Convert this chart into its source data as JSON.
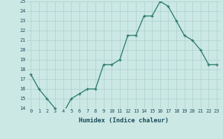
{
  "x": [
    0,
    1,
    2,
    3,
    4,
    5,
    6,
    7,
    8,
    9,
    10,
    11,
    12,
    13,
    14,
    15,
    16,
    17,
    18,
    19,
    20,
    21,
    22,
    23
  ],
  "y": [
    17.5,
    16.0,
    15.0,
    14.0,
    13.5,
    15.0,
    15.5,
    16.0,
    16.0,
    18.5,
    18.5,
    19.0,
    21.5,
    21.5,
    23.5,
    23.5,
    25.0,
    24.5,
    23.0,
    21.5,
    21.0,
    20.0,
    18.5,
    18.5
  ],
  "xlabel": "Humidex (Indice chaleur)",
  "ylim": [
    14,
    25
  ],
  "xlim": [
    -0.5,
    23.5
  ],
  "yticks": [
    14,
    15,
    16,
    17,
    18,
    19,
    20,
    21,
    22,
    23,
    24,
    25
  ],
  "xticks": [
    0,
    1,
    2,
    3,
    4,
    5,
    6,
    7,
    8,
    9,
    10,
    11,
    12,
    13,
    14,
    15,
    16,
    17,
    18,
    19,
    20,
    21,
    22,
    23
  ],
  "line_color": "#2e7d6e",
  "marker_color": "#2e7d6e",
  "bg_color": "#cce8e4",
  "grid_color": "#aacfcb",
  "text_color": "#1a4a5a",
  "font_family": "monospace",
  "tick_fontsize": 5.0,
  "xlabel_fontsize": 6.5
}
